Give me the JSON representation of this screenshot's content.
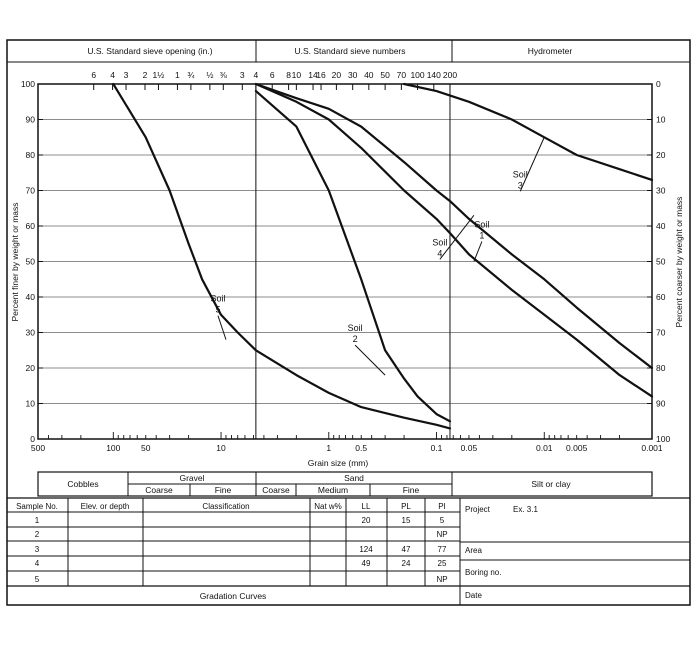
{
  "chart_data": {
    "type": "line",
    "x_scale": "log",
    "x_reversed": true,
    "xlim": [
      500,
      0.001
    ],
    "ylim": [
      0,
      100
    ],
    "xlabel": "Grain size (mm)",
    "ylabel_left": "Percent finer by weight or mass",
    "ylabel_right": "Percent coarser by weight or mass",
    "x_ticks": [
      {
        "v": 500,
        "label": "500"
      },
      {
        "v": 100,
        "label": "100"
      },
      {
        "v": 50,
        "label": "50"
      },
      {
        "v": 10,
        "label": "10"
      },
      {
        "v": 1,
        "label": "1"
      },
      {
        "v": 0.5,
        "label": "0.5"
      },
      {
        "v": 0.1,
        "label": "0.1"
      },
      {
        "v": 0.05,
        "label": "0.05"
      },
      {
        "v": 0.01,
        "label": "0.01"
      },
      {
        "v": 0.005,
        "label": "0.005"
      },
      {
        "v": 0.001,
        "label": "0.001"
      }
    ],
    "y_ticks_left": [
      "0",
      "10",
      "20",
      "30",
      "40",
      "50",
      "60",
      "70",
      "80",
      "90",
      "100"
    ],
    "y_ticks_right": [
      "100",
      "90",
      "80",
      "70",
      "60",
      "50",
      "40",
      "30",
      "20",
      "10",
      "0"
    ],
    "top_headers": {
      "sieve_opening": "U.S. Standard sieve opening (in.)",
      "sieve_numbers": "U.S. Standard sieve numbers",
      "hydrometer": "Hydrometer"
    },
    "sieve_opening_ticks": [
      {
        "v": 152,
        "label": "6"
      },
      {
        "v": 101.6,
        "label": "4"
      },
      {
        "v": 76.2,
        "label": "3"
      },
      {
        "v": 50.8,
        "label": "2"
      },
      {
        "v": 38.1,
        "label": "1½"
      },
      {
        "v": 25.4,
        "label": "1"
      },
      {
        "v": 19.05,
        "label": "¾"
      },
      {
        "v": 12.7,
        "label": "½"
      },
      {
        "v": 9.53,
        "label": "⅜"
      },
      {
        "v": 6.35,
        "label": "3"
      }
    ],
    "sieve_number_ticks": [
      {
        "v": 4.75,
        "label": "4"
      },
      {
        "v": 3.35,
        "label": "6"
      },
      {
        "v": 2.36,
        "label": "8"
      },
      {
        "v": 2.0,
        "label": "10"
      },
      {
        "v": 1.4,
        "label": "14"
      },
      {
        "v": 1.18,
        "label": "16"
      },
      {
        "v": 0.85,
        "label": "20"
      },
      {
        "v": 0.6,
        "label": "30"
      },
      {
        "v": 0.425,
        "label": "40"
      },
      {
        "v": 0.3,
        "label": "50"
      },
      {
        "v": 0.212,
        "label": "70"
      },
      {
        "v": 0.15,
        "label": "100"
      },
      {
        "v": 0.106,
        "label": "140"
      },
      {
        "v": 0.075,
        "label": "200"
      }
    ],
    "reference_lines": [
      4.75,
      0.075
    ],
    "series": [
      {
        "name": "Soil 1",
        "points": [
          [
            4.75,
            100
          ],
          [
            2.0,
            95
          ],
          [
            1.0,
            90
          ],
          [
            0.5,
            82
          ],
          [
            0.2,
            70
          ],
          [
            0.1,
            62
          ],
          [
            0.075,
            58
          ],
          [
            0.05,
            52
          ],
          [
            0.02,
            42
          ],
          [
            0.01,
            35
          ],
          [
            0.005,
            28
          ],
          [
            0.002,
            18
          ],
          [
            0.001,
            12
          ]
        ]
      },
      {
        "name": "Soil 2",
        "points": [
          [
            4.75,
            98
          ],
          [
            2.0,
            88
          ],
          [
            1.0,
            70
          ],
          [
            0.5,
            45
          ],
          [
            0.3,
            25
          ],
          [
            0.2,
            17
          ],
          [
            0.15,
            12
          ],
          [
            0.1,
            7
          ],
          [
            0.075,
            5
          ]
        ]
      },
      {
        "name": "Soil 3",
        "points": [
          [
            0.2,
            100
          ],
          [
            0.1,
            98
          ],
          [
            0.05,
            95
          ],
          [
            0.02,
            90
          ],
          [
            0.01,
            85
          ],
          [
            0.005,
            80
          ],
          [
            0.002,
            76
          ],
          [
            0.001,
            73
          ]
        ]
      },
      {
        "name": "Soil 4",
        "points": [
          [
            4.75,
            100
          ],
          [
            2.0,
            96
          ],
          [
            1.0,
            93
          ],
          [
            0.5,
            88
          ],
          [
            0.2,
            78
          ],
          [
            0.1,
            70
          ],
          [
            0.075,
            67
          ],
          [
            0.05,
            62
          ],
          [
            0.02,
            52
          ],
          [
            0.01,
            45
          ],
          [
            0.005,
            37
          ],
          [
            0.002,
            27
          ],
          [
            0.001,
            20
          ]
        ]
      },
      {
        "name": "Soil 5",
        "points": [
          [
            100,
            100
          ],
          [
            50,
            85
          ],
          [
            30,
            70
          ],
          [
            20,
            55
          ],
          [
            15,
            45
          ],
          [
            10,
            35
          ],
          [
            7,
            30
          ],
          [
            4.75,
            25
          ],
          [
            2,
            18
          ],
          [
            1,
            13
          ],
          [
            0.5,
            9
          ],
          [
            0.2,
            6
          ],
          [
            0.1,
            4
          ],
          [
            0.075,
            3
          ]
        ]
      }
    ],
    "annotations": [
      {
        "label_lines": [
          "Soil",
          "1"
        ],
        "target": [
          0.045,
          50
        ]
      },
      {
        "label_lines": [
          "Soil",
          "2"
        ],
        "target": [
          0.3,
          18
        ]
      },
      {
        "label_lines": [
          "Soil",
          "3"
        ],
        "target": [
          0.01,
          85
        ]
      },
      {
        "label_lines": [
          "Soil",
          "4"
        ],
        "target": [
          0.045,
          63
        ]
      },
      {
        "label_lines": [
          "Soil",
          "5"
        ],
        "target": [
          9,
          28
        ]
      }
    ]
  },
  "classification_bar": {
    "cobbles": "Cobbles",
    "gravel": "Gravel",
    "gravel_coarse": "Coarse",
    "gravel_fine": "Fine",
    "sand": "Sand",
    "sand_coarse": "Coarse",
    "sand_medium": "Medium",
    "sand_fine": "Fine",
    "silt_clay": "Silt or clay"
  },
  "table": {
    "headers": [
      "Sample No.",
      "Elev. or depth",
      "Classification",
      "Nat w%",
      "LL",
      "PL",
      "PI"
    ],
    "rows": [
      [
        "1",
        "",
        "",
        "",
        "20",
        "15",
        "5"
      ],
      [
        "2",
        "",
        "",
        "",
        "",
        "",
        "NP"
      ],
      [
        "3",
        "",
        "",
        "",
        "124",
        "47",
        "77"
      ],
      [
        "4",
        "",
        "",
        "",
        "49",
        "24",
        "25"
      ],
      [
        "5",
        "",
        "",
        "",
        "",
        "",
        "NP"
      ]
    ],
    "footer": "Gradation Curves",
    "project_label": "Project",
    "project_value": "Ex. 3.1",
    "area_label": "Area",
    "boring_label": "Boring no.",
    "date_label": "Date"
  }
}
